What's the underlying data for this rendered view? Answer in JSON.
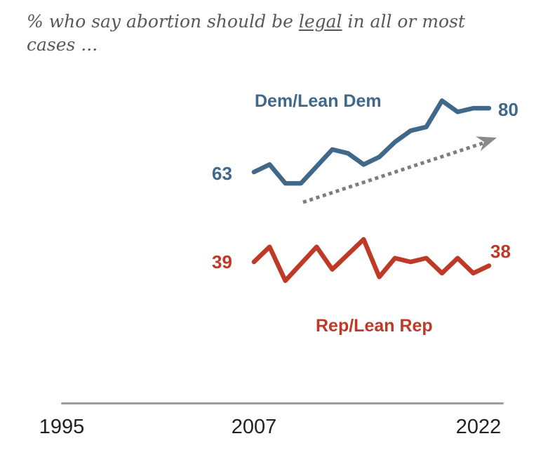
{
  "header": {
    "line1_pre": "% who say abortion should be ",
    "line1_underlined": "legal",
    "line1_post": " in all or most",
    "line2": "cases ..."
  },
  "chart_data": {
    "type": "line",
    "title": "% who say abortion should be legal in all or most cases ...",
    "x_axis": {
      "ticks": [
        "1995",
        "2007",
        "2022"
      ],
      "range": [
        1995,
        2022
      ],
      "grid": false
    },
    "series": [
      {
        "name": "Dem/Lean Dem",
        "color": "#3f688a",
        "start_label": "63",
        "end_label": "80",
        "points": [
          [
            2007,
            63
          ],
          [
            2008,
            65
          ],
          [
            2009,
            60
          ],
          [
            2010,
            60
          ],
          [
            2012,
            69
          ],
          [
            2013,
            68
          ],
          [
            2014,
            65
          ],
          [
            2015,
            67
          ],
          [
            2016,
            71
          ],
          [
            2017,
            74
          ],
          [
            2018,
            75
          ],
          [
            2019,
            82
          ],
          [
            2020,
            79
          ],
          [
            2021,
            80
          ],
          [
            2022,
            80
          ]
        ]
      },
      {
        "name": "Rep/Lean Rep",
        "color": "#bf3927",
        "start_label": "39",
        "end_label": "38",
        "points": [
          [
            2007,
            39
          ],
          [
            2008,
            43
          ],
          [
            2009,
            34
          ],
          [
            2011,
            43
          ],
          [
            2012,
            37
          ],
          [
            2014,
            45
          ],
          [
            2015,
            35
          ],
          [
            2016,
            40
          ],
          [
            2017,
            39
          ],
          [
            2018,
            40
          ],
          [
            2019,
            36
          ],
          [
            2020,
            40
          ],
          [
            2021,
            36
          ],
          [
            2022,
            38
          ]
        ]
      }
    ],
    "annotations": [
      {
        "type": "trend-arrow",
        "direction": "up-right",
        "style": "dotted",
        "color": "#7d7d7d"
      }
    ],
    "legend_position": "inline-labels"
  },
  "colors": {
    "dem": "#3f688a",
    "rep": "#bf3927",
    "axis_line": "#9c9c9c",
    "title_text": "#58585a",
    "tick_text": "#222222",
    "arrow": "#7d7d7d"
  }
}
